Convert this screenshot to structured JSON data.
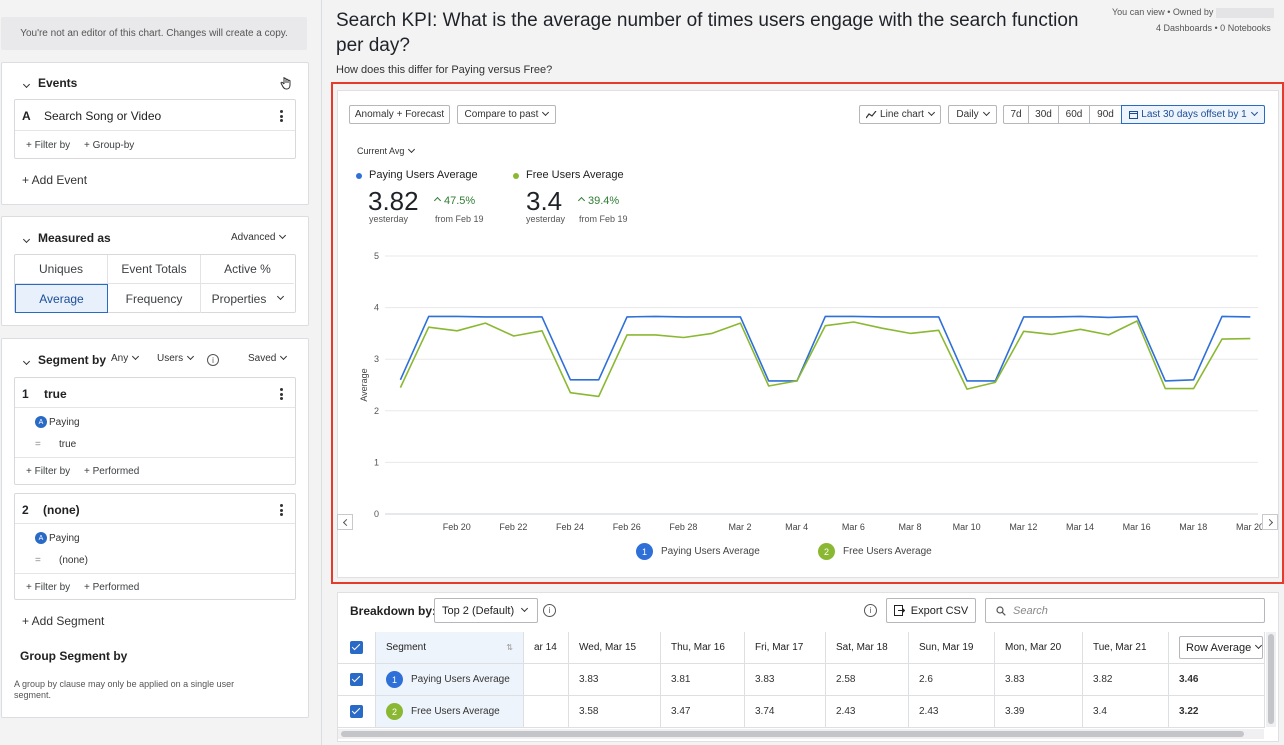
{
  "sidebar": {
    "notice": "You're not an editor of this chart. Changes will create a copy.",
    "events": {
      "title": "Events",
      "item_letter": "A",
      "item_name": "Search Song or Video",
      "filter_by": "+ Filter by",
      "group_by": "+ Group-by",
      "add_event": "+ Add Event"
    },
    "measured": {
      "title": "Measured as",
      "advanced": "Advanced",
      "options": [
        "Uniques",
        "Event Totals",
        "Active %",
        "Average",
        "Frequency",
        "Properties"
      ],
      "selected": "Average"
    },
    "segment": {
      "title": "Segment by",
      "any": "Any",
      "users": "Users",
      "saved": "Saved",
      "seg1_num": "1",
      "seg1_name": "true",
      "seg1_prop": "Paying",
      "seg1_op": "=",
      "seg1_val": "true",
      "seg2_num": "2",
      "seg2_name": "(none)",
      "seg2_prop": "Paying",
      "seg2_op": "=",
      "seg2_val": "(none)",
      "filter_by": "+ Filter by",
      "performed": "+ Performed",
      "add_segment": "+ Add Segment",
      "group_title": "Group Segment by",
      "group_note": "A group by clause may only be applied on a single user segment."
    }
  },
  "header": {
    "title_line1": "Search KPI: What is the average number of times users engage with the search function",
    "title_line2": "per day?",
    "subtitle": "How does this differ for Paying versus Free?",
    "perm": "You can view • Owned by",
    "counts": "4 Dashboards • 0 Notebooks"
  },
  "toolbar": {
    "anomaly": "Anomaly + Forecast",
    "compare": "Compare to past",
    "chart_type": "Line chart",
    "interval": "Daily",
    "ranges": [
      "7d",
      "30d",
      "60d",
      "90d"
    ],
    "date_range": "Last 30 days offset by 1",
    "current_avg": "Current Avg"
  },
  "kpis": [
    {
      "name": "Paying Users Average",
      "value": "3.82",
      "sub": "yesterday",
      "change": "47.5%",
      "from": "from Feb 19"
    },
    {
      "name": "Free Users Average",
      "value": "3.4",
      "sub": "yesterday",
      "change": "39.4%",
      "from": "from Feb 19"
    }
  ],
  "colors": {
    "paying": "#2f6fd8",
    "free": "#8ab832",
    "accent": "#2a6ac7",
    "highlight": "#e53a2c"
  },
  "chart_data": {
    "type": "line",
    "xlabel": "",
    "ylabel": "Average",
    "ylim": [
      0,
      5
    ],
    "yticks": [
      "0",
      "1",
      "2",
      "3",
      "4",
      "5"
    ],
    "xticks": [
      "Feb 20",
      "Feb 22",
      "Feb 24",
      "Feb 26",
      "Feb 28",
      "Mar 2",
      "Mar 4",
      "Mar 6",
      "Mar 8",
      "Mar 10",
      "Mar 12",
      "Mar 14",
      "Mar 16",
      "Mar 18",
      "Mar 20"
    ],
    "x": [
      "Feb 19",
      "Feb 20",
      "Feb 21",
      "Feb 22",
      "Feb 23",
      "Feb 24",
      "Feb 25",
      "Feb 26",
      "Feb 27",
      "Feb 28",
      "Mar 1",
      "Mar 2",
      "Mar 3",
      "Mar 4",
      "Mar 5",
      "Mar 6",
      "Mar 7",
      "Mar 8",
      "Mar 9",
      "Mar 10",
      "Mar 11",
      "Mar 12",
      "Mar 13",
      "Mar 14",
      "Mar 15",
      "Mar 16",
      "Mar 17",
      "Mar 18",
      "Mar 19",
      "Mar 20",
      "Mar 21"
    ],
    "series": [
      {
        "name": "Paying Users Average",
        "values": [
          2.6,
          3.83,
          3.83,
          3.82,
          3.82,
          3.82,
          2.6,
          2.6,
          3.82,
          3.83,
          3.82,
          3.82,
          3.82,
          2.58,
          2.58,
          3.83,
          3.83,
          3.82,
          3.82,
          3.82,
          2.58,
          2.58,
          3.82,
          3.82,
          3.83,
          3.81,
          3.83,
          2.58,
          2.6,
          3.83,
          3.82
        ]
      },
      {
        "name": "Free Users Average",
        "values": [
          2.45,
          3.62,
          3.55,
          3.7,
          3.45,
          3.55,
          2.35,
          2.28,
          3.47,
          3.47,
          3.42,
          3.5,
          3.7,
          2.48,
          2.58,
          3.65,
          3.72,
          3.6,
          3.5,
          3.56,
          2.42,
          2.55,
          3.54,
          3.48,
          3.58,
          3.47,
          3.74,
          2.43,
          2.43,
          3.39,
          3.4
        ]
      }
    ],
    "legend": [
      "Paying Users Average",
      "Free Users Average"
    ],
    "legend_position": "bottom"
  },
  "breakdown": {
    "label": "Breakdown by:",
    "select": "Top 2 (Default)",
    "export": "Export CSV",
    "search_placeholder": "Search",
    "columns": [
      "Segment",
      "ar 14",
      "Wed, Mar 15",
      "Thu, Mar 16",
      "Fri, Mar 17",
      "Sat, Mar 18",
      "Sun, Mar 19",
      "Mon, Mar 20",
      "Tue, Mar 21",
      "Row Average"
    ],
    "rows": [
      {
        "num": "1",
        "name": "Paying Users Average",
        "cells": [
          "",
          "3.83",
          "3.81",
          "3.83",
          "2.58",
          "2.6",
          "3.83",
          "3.82"
        ],
        "avg": "3.46"
      },
      {
        "num": "2",
        "name": "Free Users Average",
        "cells": [
          "",
          "3.58",
          "3.47",
          "3.74",
          "2.43",
          "2.43",
          "3.39",
          "3.4"
        ],
        "avg": "3.22"
      }
    ]
  }
}
